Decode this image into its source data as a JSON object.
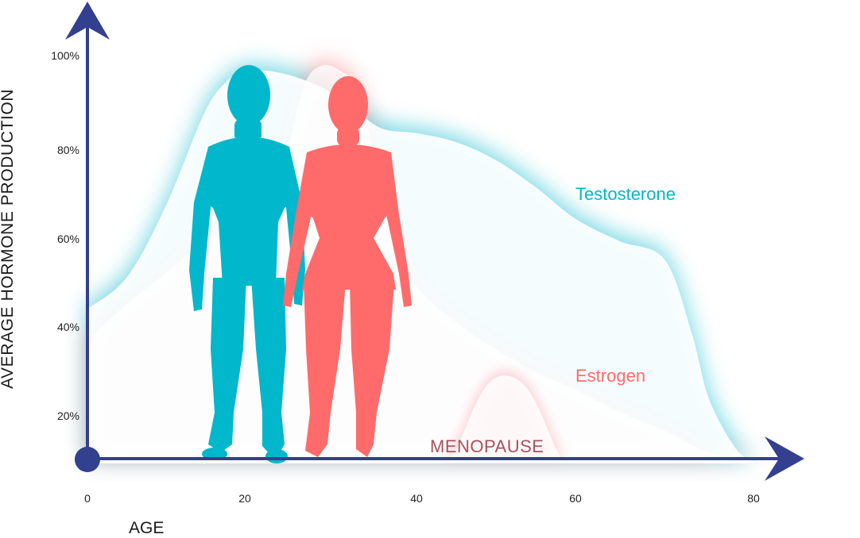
{
  "chart_data": {
    "type": "area",
    "ylabel": "AVERAGE HORMONE PRODUCTION",
    "xlabel": "AGE",
    "x_ticks": [
      0,
      20,
      40,
      60,
      80
    ],
    "y_ticks": [
      "20%",
      "40%",
      "60%",
      "80%",
      "100%"
    ],
    "xlim": [
      0,
      80
    ],
    "ylim": [
      10,
      100
    ],
    "series": [
      {
        "name": "Testosterone",
        "color": "#00b7cc",
        "x": [
          0,
          5,
          10,
          15,
          18,
          20,
          22,
          25,
          28,
          30,
          33,
          36,
          40,
          45,
          50,
          55,
          60,
          65,
          70,
          73,
          75,
          78,
          80
        ],
        "y": [
          45,
          52,
          68,
          89,
          96,
          98,
          98,
          97,
          95,
          93,
          89,
          85,
          84,
          82,
          78,
          72,
          65,
          60,
          56,
          40,
          25,
          14,
          11
        ]
      },
      {
        "name": "Estrogen",
        "color": "#ff6b6b",
        "x": [
          0,
          5,
          10,
          15,
          20,
          23,
          25,
          27,
          29,
          31,
          33,
          35,
          37,
          40,
          45,
          50,
          55,
          60,
          65,
          70,
          75,
          80
        ],
        "y": [
          38,
          46,
          53,
          60,
          63,
          65,
          80,
          95,
          99,
          98,
          94,
          80,
          62,
          50,
          42,
          36,
          31,
          27,
          22,
          18,
          13,
          11
        ]
      }
    ],
    "annotations": [
      {
        "text": "MENOPAUSE",
        "color": "#a8525c",
        "x_range": [
          44,
          58
        ],
        "peak": 30
      }
    ],
    "legend": "inline labels"
  },
  "colors": {
    "axis": "#333f8f",
    "testosterone": "#00b7cc",
    "estrogen": "#ff6b6b"
  },
  "figures": [
    {
      "name": "male-silhouette",
      "color": "#00b7cc"
    },
    {
      "name": "female-silhouette",
      "color": "#ff6b6b"
    }
  ]
}
